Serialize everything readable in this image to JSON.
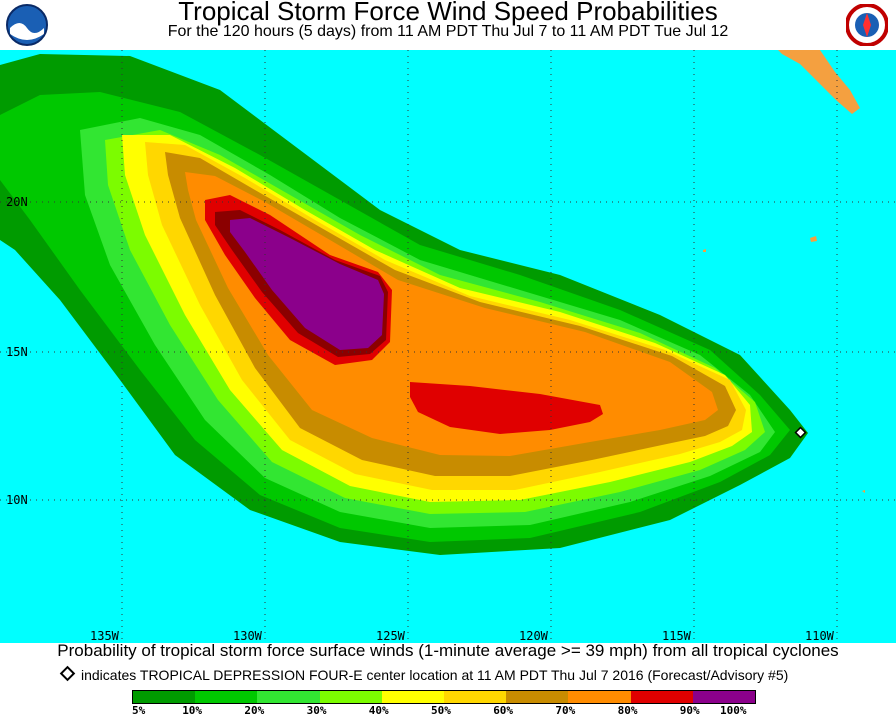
{
  "header": {
    "title": "Tropical Storm Force Wind Speed Probabilities",
    "subtitle": "For the 120 hours (5 days) from 11 AM PDT Thu Jul 7 to 11 AM PDT Tue Jul 12"
  },
  "logos": {
    "left": "noaa-logo",
    "right": "nws-logo"
  },
  "map": {
    "ocean_color": "#00ffff",
    "land_color": "#f4a040",
    "lat_labels": [
      "20N",
      "15N",
      "10N"
    ],
    "lon_labels": [
      "135W",
      "130W",
      "125W",
      "120W",
      "115W",
      "110W"
    ]
  },
  "caption": "Probability of tropical storm force surface winds (1-minute average >= 39 mph) from all tropical cyclones",
  "note": {
    "icon": "diamond-icon",
    "text": "indicates TROPICAL DEPRESSION FOUR-E center location at 11 AM PDT Thu Jul 7 2016 (Forecast/Advisory #5)"
  },
  "legend": {
    "colors": [
      "#009b00",
      "#00c800",
      "#32e632",
      "#7cfc00",
      "#ffff00",
      "#ffd700",
      "#c88c00",
      "#ff8c00",
      "#e00000",
      "#8b0000",
      "#8b008b"
    ],
    "labels": [
      "5%",
      "10%",
      "20%",
      "30%",
      "40%",
      "50%",
      "60%",
      "70%",
      "80%",
      "90%",
      "100%"
    ]
  }
}
